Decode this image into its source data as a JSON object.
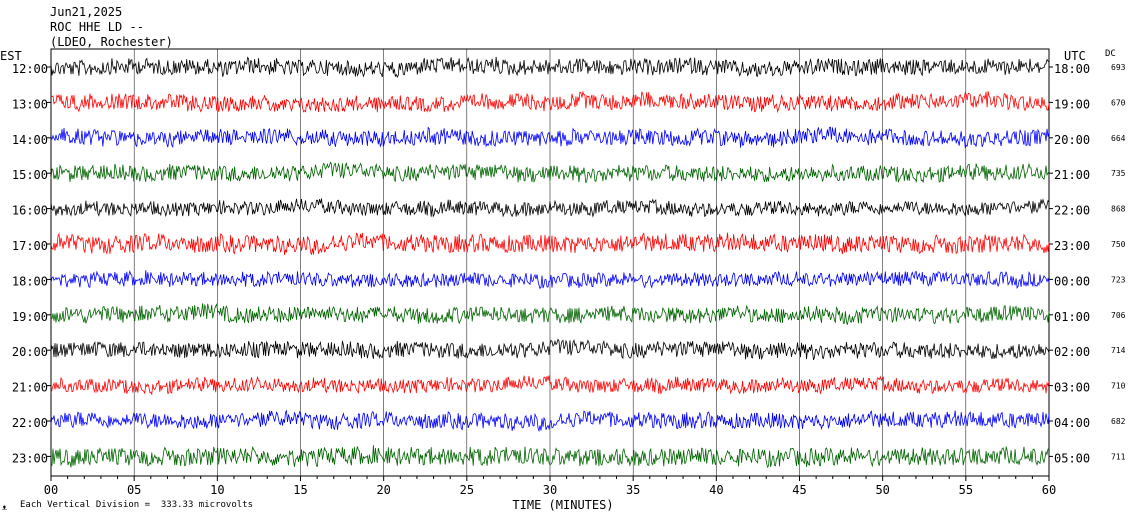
{
  "header": {
    "date": "Jun21,2025",
    "station": "ROC HHE LD --",
    "network": "(LDEO, Rochester)"
  },
  "left_label": "EST",
  "right_label": "UTC",
  "dc_label": "DC",
  "footer_label": "Each Vertical Division =  333.33 microvolts",
  "corner_mark": "ᴥ",
  "chart_data": {
    "type": "line",
    "title": "ROC HHE LD --",
    "xlabel": "TIME (MINUTES)",
    "x_range": [
      0,
      60
    ],
    "x_ticks": [
      "00",
      "05",
      "10",
      "15",
      "20",
      "25",
      "30",
      "35",
      "40",
      "45",
      "50",
      "55",
      "60"
    ],
    "rows": [
      {
        "est": "12:00",
        "utc": "18:00",
        "dc": "693",
        "color": "#000000",
        "amp": 8
      },
      {
        "est": "13:00",
        "utc": "19:00",
        "dc": "670",
        "color": "#ff0000",
        "amp": 8
      },
      {
        "est": "14:00",
        "utc": "20:00",
        "dc": "664",
        "color": "#0000ff",
        "amp": 8
      },
      {
        "est": "15:00",
        "utc": "21:00",
        "dc": "735",
        "color": "#006400",
        "amp": 8
      },
      {
        "est": "16:00",
        "utc": "22:00",
        "dc": "868",
        "color": "#000000",
        "amp": 7
      },
      {
        "est": "17:00",
        "utc": "23:00",
        "dc": "750",
        "color": "#ff0000",
        "amp": 9
      },
      {
        "est": "18:00",
        "utc": "00:00",
        "dc": "723",
        "color": "#0000ff",
        "amp": 7
      },
      {
        "est": "19:00",
        "utc": "01:00",
        "dc": "706",
        "color": "#006400",
        "amp": 8
      },
      {
        "est": "20:00",
        "utc": "02:00",
        "dc": "714",
        "color": "#000000",
        "amp": 8
      },
      {
        "est": "21:00",
        "utc": "03:00",
        "dc": "710",
        "color": "#ff0000",
        "amp": 7
      },
      {
        "est": "22:00",
        "utc": "04:00",
        "dc": "682",
        "color": "#0000ff",
        "amp": 8
      },
      {
        "est": "23:00",
        "utc": "05:00",
        "dc": "711",
        "color": "#006400",
        "amp": 9
      }
    ],
    "colors": {
      "black": "#000000",
      "red": "#ff0000",
      "blue": "#0000ff",
      "green": "#006400"
    }
  }
}
